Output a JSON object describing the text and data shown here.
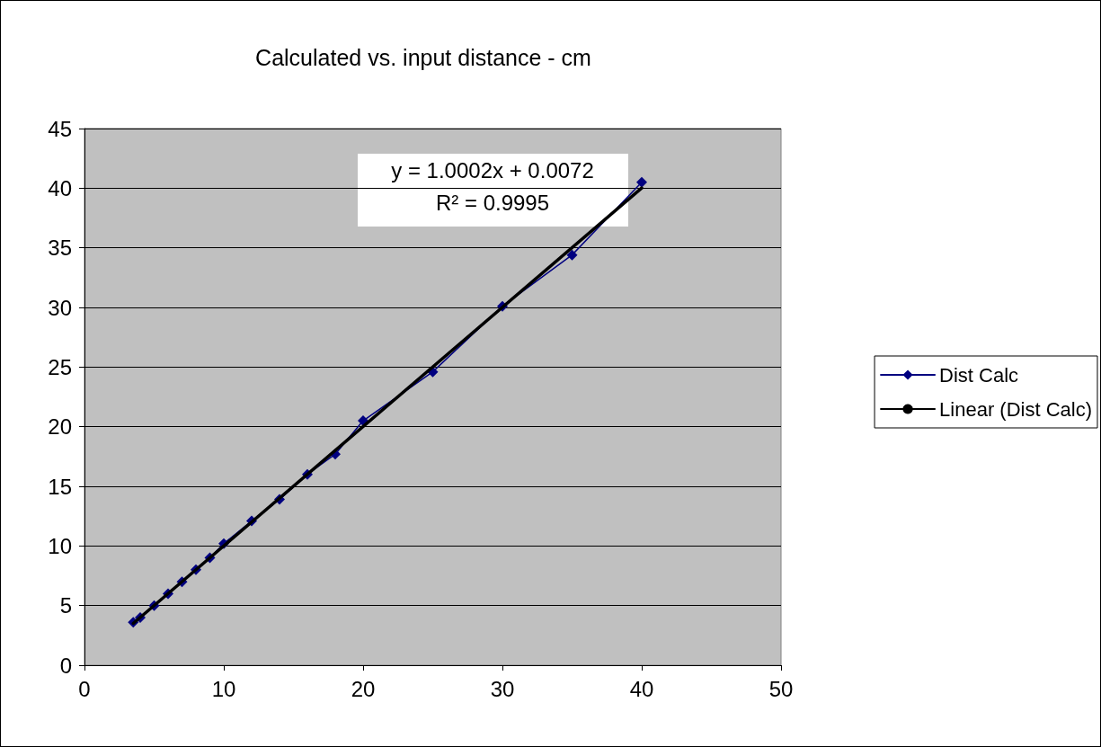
{
  "chart_data": {
    "type": "line",
    "title": "Calculated vs. input distance - cm",
    "xlim": [
      0,
      50
    ],
    "xticks": [
      0,
      10,
      20,
      30,
      40,
      50
    ],
    "ylim": [
      0,
      45
    ],
    "yticks": [
      0,
      5,
      10,
      15,
      20,
      25,
      30,
      35,
      40,
      45
    ],
    "grid": "y",
    "legend": "right",
    "marker": "diamond",
    "annotations": [
      "y = 1.0002x + 0.0072",
      "R² = 0.9995"
    ],
    "series": [
      {
        "name": "Dist Calc",
        "color": "#000080",
        "x": [
          3.5,
          4,
          5,
          6,
          7,
          8,
          9,
          10,
          12,
          14,
          16,
          18,
          20,
          25,
          30,
          35,
          40
        ],
        "values": [
          3.6,
          4.0,
          5.0,
          6.0,
          7.0,
          8.0,
          9.0,
          10.2,
          12.1,
          13.9,
          16.0,
          17.7,
          20.5,
          24.6,
          30.1,
          34.4,
          40.5
        ]
      },
      {
        "name": "Linear (Dist Calc)",
        "color": "#000000",
        "type": "line",
        "marker": "none",
        "x": [
          3.5,
          40
        ],
        "values": [
          3.508,
          40.015
        ]
      }
    ]
  }
}
